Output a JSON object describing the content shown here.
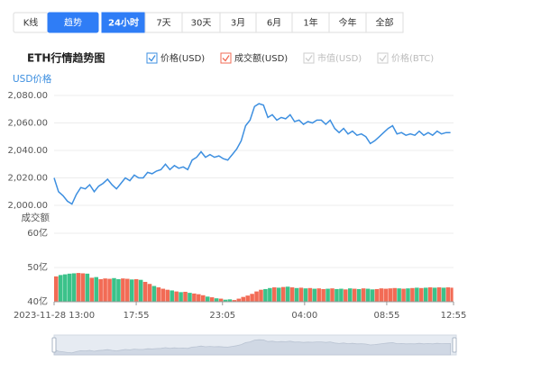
{
  "tabs": [
    "K线",
    "趋势"
  ],
  "active_tab": 1,
  "ranges": [
    "24小时",
    "7天",
    "30天",
    "3月",
    "6月",
    "1年",
    "今年",
    "全部"
  ],
  "active_range": 0,
  "title": "ETH行情趋势图",
  "legend": [
    {
      "name": "市值(USD)",
      "checked": false
    },
    {
      "name": "价格(BTC)",
      "checked": false
    }
  ],
  "chart_data": [
    {
      "type": "line",
      "y_label": "USD价格",
      "x": [
        0,
        16,
        32,
        48,
        64,
        80,
        96,
        112,
        128,
        144,
        160,
        176,
        192,
        208,
        224,
        240,
        256,
        272,
        288,
        304,
        320,
        336,
        352,
        368,
        384,
        400,
        416,
        432,
        448,
        464,
        480,
        496,
        512,
        528,
        544,
        560,
        576,
        592,
        608,
        624,
        640,
        656,
        672,
        688,
        704,
        720,
        736,
        752,
        768,
        784,
        800,
        816,
        832,
        848,
        864,
        880,
        896,
        912,
        928,
        944,
        960,
        976,
        992,
        1008,
        1024,
        1040,
        1056,
        1072,
        1088,
        1104,
        1120,
        1136,
        1152,
        1168,
        1184,
        1200,
        1216,
        1232,
        1248,
        1264,
        1280,
        1296,
        1312,
        1328,
        1344,
        1360,
        1376,
        1392,
        1408,
        1424
      ],
      "series": [
        {
          "name": "价格(USD)",
          "color": "#3d8fe0",
          "values": [
            2020,
            2010,
            2007,
            2003,
            2001,
            2008,
            2013,
            2012,
            2015,
            2010,
            2014,
            2016,
            2019,
            2015,
            2012,
            2016,
            2020,
            2018,
            2022,
            2020,
            2020,
            2024,
            2023,
            2025,
            2026,
            2030,
            2026,
            2029,
            2027,
            2028,
            2026,
            2033,
            2035,
            2039,
            2035,
            2037,
            2035,
            2036,
            2034,
            2033,
            2037,
            2041,
            2047,
            2058,
            2062,
            2072,
            2074,
            2073,
            2064,
            2066,
            2062,
            2064,
            2063,
            2066,
            2061,
            2062,
            2059,
            2061,
            2060,
            2062,
            2062,
            2059,
            2062,
            2056,
            2053,
            2056,
            2052,
            2054,
            2051,
            2052,
            2050,
            2045,
            2047,
            2050,
            2053,
            2056,
            2058,
            2052,
            2053,
            2051,
            2052,
            2051,
            2054,
            2051,
            2053,
            2051,
            2054,
            2052,
            2053,
            2053
          ]
        }
      ],
      "xlim": [
        0,
        1435
      ],
      "ylim": [
        2000,
        2080
      ],
      "yticks": [
        {
          "value": 2000,
          "label": "2,000.00"
        },
        {
          "value": 2020,
          "label": "2,020.00"
        },
        {
          "value": 2040,
          "label": "2,040.00"
        },
        {
          "value": 2060,
          "label": "2,060.00"
        },
        {
          "value": 2080,
          "label": "2,080.00"
        }
      ],
      "grid": true
    },
    {
      "type": "bar",
      "y_label": "成交额",
      "x": [
        0,
        16,
        32,
        48,
        64,
        80,
        96,
        112,
        128,
        144,
        160,
        176,
        192,
        208,
        224,
        240,
        256,
        272,
        288,
        304,
        320,
        336,
        352,
        368,
        384,
        400,
        416,
        432,
        448,
        464,
        480,
        496,
        512,
        528,
        544,
        560,
        576,
        592,
        608,
        624,
        640,
        656,
        672,
        688,
        704,
        720,
        736,
        752,
        768,
        784,
        800,
        816,
        832,
        848,
        864,
        880,
        896,
        912,
        928,
        944,
        960,
        976,
        992,
        1008,
        1024,
        1040,
        1056,
        1072,
        1088,
        1104,
        1120,
        1136,
        1152,
        1168,
        1184,
        1200,
        1216,
        1232,
        1248,
        1264,
        1280,
        1296,
        1312,
        1328,
        1344,
        1360,
        1376,
        1392,
        1408,
        1424
      ],
      "series": [
        {
          "name": "成交额(USD)",
          "color": "#f26b55",
          "up_color": "#f26b55",
          "down_color": "#3bc28a",
          "values": [
            47.4,
            47.8,
            48.0,
            48.2,
            48.3,
            48.4,
            48.3,
            48.2,
            47.0,
            47.2,
            46.6,
            46.8,
            46.7,
            46.9,
            46.6,
            46.8,
            46.7,
            46.5,
            46.6,
            46.4,
            45.8,
            45.2,
            44.6,
            44.2,
            43.8,
            43.5,
            43.3,
            43.0,
            42.8,
            42.9,
            42.6,
            42.4,
            42.2,
            41.9,
            41.5,
            41.3,
            41.0,
            40.9,
            40.6,
            40.7,
            40.5,
            40.9,
            41.4,
            41.8,
            42.3,
            43.0,
            43.5,
            43.7,
            44.0,
            44.2,
            44.1,
            44.3,
            44.4,
            44.2,
            44.0,
            44.1,
            43.9,
            44.0,
            43.8,
            43.9,
            43.7,
            43.8,
            43.9,
            43.7,
            43.8,
            43.6,
            43.9,
            43.8,
            43.7,
            43.9,
            43.8,
            43.6,
            43.7,
            43.9,
            43.8,
            43.9,
            44.0,
            43.9,
            43.8,
            43.9,
            44.0,
            44.1,
            44.0,
            44.1,
            44.2,
            44.1,
            44.2,
            44.1,
            44.2,
            44.1
          ]
        }
      ],
      "xlim": [
        0,
        1435
      ],
      "ylim": [
        40,
        60
      ],
      "yticks": [
        {
          "value": 40,
          "label": "40亿"
        },
        {
          "value": 50,
          "label": "50亿"
        },
        {
          "value": 60,
          "label": "60亿"
        }
      ],
      "xticks": [
        {
          "value": 0,
          "label": "2023-11-28 13:00"
        },
        {
          "value": 295,
          "label": "17:55"
        },
        {
          "value": 605,
          "label": "23:05"
        },
        {
          "value": 900,
          "label": "04:00"
        },
        {
          "value": 1195,
          "label": "08:55"
        },
        {
          "value": 1435,
          "label": "12:55"
        }
      ],
      "grid": true
    }
  ]
}
